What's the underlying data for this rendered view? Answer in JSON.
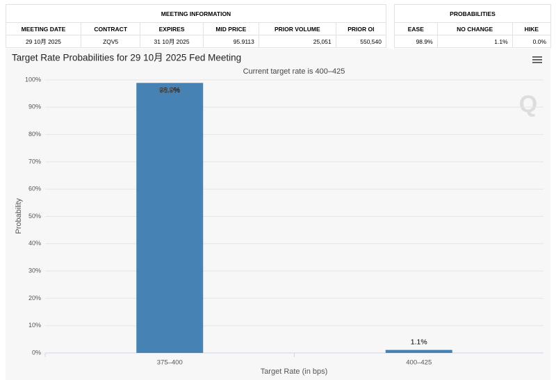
{
  "meeting_information": {
    "title": "MEETING INFORMATION",
    "columns": [
      "MEETING DATE",
      "CONTRACT",
      "EXPIRES",
      "MID PRICE",
      "PRIOR VOLUME",
      "PRIOR OI"
    ],
    "rows": [
      [
        "29 10月 2025",
        "ZQV5",
        "31 10月 2025",
        "95.9113",
        "25,051",
        "550,540"
      ]
    ]
  },
  "probabilities": {
    "title": "PROBABILITIES",
    "columns": [
      "EASE",
      "NO CHANGE",
      "HIKE"
    ],
    "rows": [
      [
        "98.9%",
        "1.1%",
        "0.0%"
      ]
    ]
  },
  "chart_data": {
    "type": "bar",
    "title": "Target Rate Probabilities for 29 10月 2025 Fed Meeting",
    "subtitle": "Current target rate is 400–425",
    "x_label": "Target Rate (in bps)",
    "y_label": "Probability",
    "categories": [
      "375–400",
      "400–425"
    ],
    "values": [
      98.9,
      1.1
    ],
    "value_labels": [
      "98.9%",
      "1.1%"
    ],
    "color": "#4682b4",
    "ylim": [
      0,
      100
    ],
    "yticks": [
      {
        "value": 0,
        "label": "0%"
      },
      {
        "value": 10,
        "label": "10%"
      },
      {
        "value": 20,
        "label": "20%"
      },
      {
        "value": 30,
        "label": "30%"
      },
      {
        "value": 40,
        "label": "40%"
      },
      {
        "value": 50,
        "label": "50%"
      },
      {
        "value": 60,
        "label": "60%"
      },
      {
        "value": 70,
        "label": "70%"
      },
      {
        "value": 80,
        "label": "80%"
      },
      {
        "value": 90,
        "label": "90%"
      },
      {
        "value": 100,
        "label": "100%"
      }
    ],
    "grid": true
  }
}
